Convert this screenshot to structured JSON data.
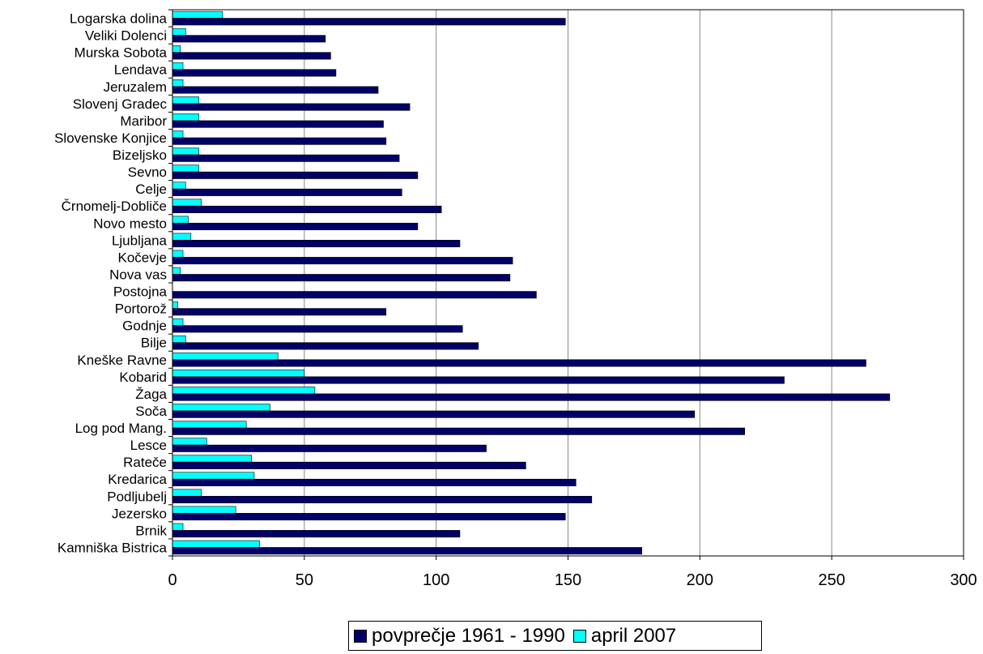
{
  "chart_data": {
    "type": "bar",
    "orientation": "horizontal",
    "categories": [
      "Logarska dolina",
      "Veliki Dolenci",
      "Murska Sobota",
      "Lendava",
      "Jeruzalem",
      "Slovenj Gradec",
      "Maribor",
      "Slovenske Konjice",
      "Bizeljsko",
      "Sevno",
      "Celje",
      "Črnomelj-Dobliče",
      "Novo mesto",
      "Ljubljana",
      "Kočevje",
      "Nova vas",
      "Postojna",
      "Portorož",
      "Godnje",
      "Bilje",
      "Kneške Ravne",
      "Kobarid",
      "Žaga",
      "Soča",
      "Log pod Mang.",
      "Lesce",
      "Rateče",
      "Kredarica",
      "Podljubelj",
      "Jezersko",
      "Brnik",
      "Kamniška Bistrica"
    ],
    "series": [
      {
        "name": "povprečje 1961 - 1990",
        "color": "#000066",
        "values": [
          149,
          58,
          60,
          62,
          78,
          90,
          80,
          81,
          86,
          93,
          87,
          102,
          93,
          109,
          129,
          128,
          138,
          81,
          110,
          116,
          263,
          232,
          272,
          198,
          217,
          119,
          134,
          153,
          159,
          149,
          109,
          178
        ]
      },
      {
        "name": "april 2007",
        "color": "#00ffff",
        "values": [
          19,
          5,
          3,
          4,
          4,
          10,
          10,
          4,
          10,
          10,
          5,
          11,
          6,
          7,
          4,
          3,
          0,
          2,
          4,
          5,
          40,
          50,
          54,
          37,
          28,
          13,
          30,
          31,
          11,
          24,
          4,
          33
        ]
      }
    ],
    "xlim": [
      0,
      300
    ],
    "x_ticks": [
      "0",
      "50",
      "100",
      "150",
      "200",
      "250",
      "300"
    ],
    "grid": "vertical",
    "legend": "bottom"
  },
  "legend": {
    "items": [
      {
        "label": "povprečje 1961 - 1990",
        "color": "#000066"
      },
      {
        "label": "april 2007",
        "color": "#00ffff"
      }
    ]
  }
}
